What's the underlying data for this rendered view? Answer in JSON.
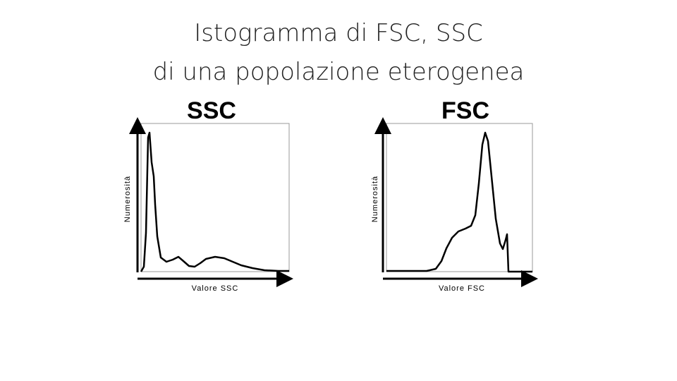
{
  "slide": {
    "title_line1": "Istogramma di FSC, SSC",
    "title_line2": "di una popolazione eterogenea",
    "panels": [
      {
        "heading": "SSC",
        "y_label": "Numerosità",
        "x_label": "Valore SSC"
      },
      {
        "heading": "FSC",
        "y_label": "Numerosità",
        "x_label": "Valore FSC"
      }
    ]
  }
}
